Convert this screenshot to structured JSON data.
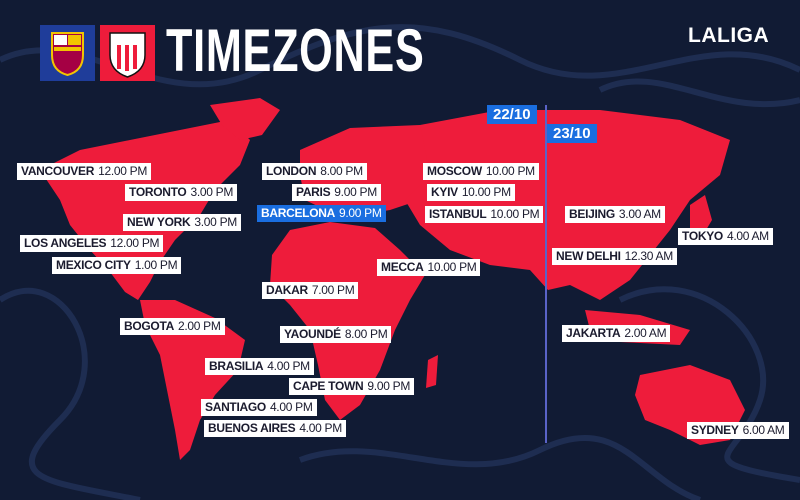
{
  "header": {
    "title": "TIMEZONES",
    "brand": "LALIGA",
    "crests": [
      "FCB",
      "ATHLETIC CLUB"
    ]
  },
  "colors": {
    "background": "#111b34",
    "land": "#ee1c3b",
    "highlight": "#1a6ee0"
  },
  "dates": {
    "left": "22/10",
    "right": "23/10"
  },
  "cities": [
    {
      "city": "VANCOUVER",
      "time": "12.00 PM"
    },
    {
      "city": "TORONTO",
      "time": "3.00 PM"
    },
    {
      "city": "NEW YORK",
      "time": "3.00 PM"
    },
    {
      "city": "LOS ANGELES",
      "time": "12.00 PM"
    },
    {
      "city": "MEXICO CITY",
      "time": "1.00 PM"
    },
    {
      "city": "LONDON",
      "time": "8.00 PM"
    },
    {
      "city": "PARIS",
      "time": "9.00 PM"
    },
    {
      "city": "BARCELONA",
      "time": "9.00 PM",
      "highlight": true
    },
    {
      "city": "MOSCOW",
      "time": "10.00 PM"
    },
    {
      "city": "KYIV",
      "time": "10.00 PM"
    },
    {
      "city": "ISTANBUL",
      "time": "10.00 PM"
    },
    {
      "city": "MECCA",
      "time": "10.00 PM"
    },
    {
      "city": "DAKAR",
      "time": "7.00 PM"
    },
    {
      "city": "BEIJING",
      "time": "3.00 AM"
    },
    {
      "city": "TOKYO",
      "time": "4.00 AM"
    },
    {
      "city": "NEW DELHI",
      "time": "12.30 AM"
    },
    {
      "city": "BOGOTA",
      "time": "2.00 PM"
    },
    {
      "city": "YAOUNDÉ",
      "time": "8.00 PM"
    },
    {
      "city": "JAKARTA",
      "time": "2.00 AM"
    },
    {
      "city": "BRASILIA",
      "time": "4.00 PM"
    },
    {
      "city": "CAPE TOWN",
      "time": "9.00 PM"
    },
    {
      "city": "SANTIAGO",
      "time": "4.00 PM"
    },
    {
      "city": "BUENOS AIRES",
      "time": "4.00 PM"
    },
    {
      "city": "SYDNEY",
      "time": "6.00 AM"
    }
  ]
}
